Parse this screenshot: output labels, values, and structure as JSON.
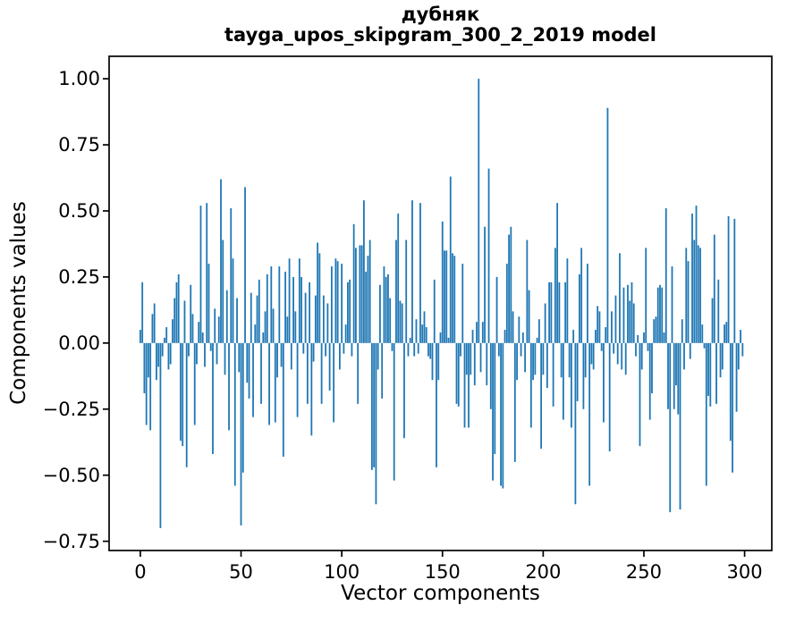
{
  "chart": {
    "title_line1": "дубняк",
    "title_line2": "tayga_upos_skipgram_300_2_2019 model",
    "xlabel": "Vector components",
    "ylabel": "Components values"
  },
  "chart_data": {
    "type": "bar",
    "title": "дубняк — tayga_upos_skipgram_300_2_2019 model",
    "xlabel": "Vector components",
    "ylabel": "Components values",
    "bar_color": "#1f77b4",
    "frame_color": "#000000",
    "grid": false,
    "legend": null,
    "n_points": 300,
    "x_start": 0,
    "xlim": [
      -15.5,
      313.5
    ],
    "ylim": [
      -0.785,
      1.085
    ],
    "x_ticks": [
      {
        "value": 0,
        "label": "0"
      },
      {
        "value": 50,
        "label": "50"
      },
      {
        "value": 100,
        "label": "100"
      },
      {
        "value": 150,
        "label": "150"
      },
      {
        "value": 200,
        "label": "200"
      },
      {
        "value": 250,
        "label": "250"
      },
      {
        "value": 300,
        "label": "300"
      }
    ],
    "y_ticks": [
      {
        "value": 1.0,
        "label": "1.00"
      },
      {
        "value": 0.75,
        "label": "0.75"
      },
      {
        "value": 0.5,
        "label": "0.50"
      },
      {
        "value": 0.25,
        "label": "0.25"
      },
      {
        "value": 0.0,
        "label": "0.00"
      },
      {
        "value": -0.25,
        "label": "−0.25"
      },
      {
        "value": -0.5,
        "label": "−0.50"
      },
      {
        "value": -0.75,
        "label": "−0.75"
      }
    ],
    "values": [
      0.05,
      0.23,
      -0.19,
      -0.31,
      -0.13,
      -0.33,
      0.11,
      0.15,
      -0.14,
      -0.09,
      -0.7,
      -0.05,
      0.02,
      0.06,
      -0.1,
      -0.08,
      0.09,
      0.17,
      0.23,
      0.26,
      -0.37,
      -0.39,
      0.16,
      -0.47,
      -0.05,
      0.22,
      0.11,
      -0.31,
      -0.08,
      0.08,
      0.52,
      0.04,
      -0.09,
      0.53,
      0.3,
      -0.03,
      -0.42,
      0.13,
      -0.08,
      0.1,
      0.62,
      0.39,
      -0.12,
      0.2,
      -0.33,
      0.51,
      0.32,
      -0.54,
      0.17,
      -0.11,
      -0.69,
      -0.49,
      0.59,
      -0.15,
      -0.21,
      0.19,
      -0.28,
      0.07,
      0.18,
      0.24,
      -0.23,
      0.04,
      0.12,
      0.26,
      -0.31,
      0.29,
      0.13,
      -0.3,
      -0.13,
      0.29,
      -0.09,
      -0.43,
      0.27,
      0.1,
      0.32,
      -0.1,
      0.25,
      0.12,
      -0.28,
      0.32,
      0.25,
      -0.04,
      0.19,
      -0.23,
      0.23,
      -0.35,
      -0.07,
      0.18,
      0.38,
      0.34,
      -0.23,
      0.18,
      -0.05,
      0.15,
      -0.18,
      0.29,
      -0.3,
      0.32,
      0.31,
      -0.1,
      0.3,
      -0.04,
      0.07,
      0.23,
      0.24,
      -0.05,
      0.45,
      0.36,
      -0.23,
      0.37,
      0.37,
      0.54,
      0.27,
      0.33,
      0.39,
      -0.48,
      -0.47,
      -0.61,
      -0.1,
      0.22,
      -0.21,
      0.29,
      0.25,
      0.26,
      0.17,
      -0.03,
      -0.52,
      0.39,
      0.49,
      0.16,
      0.15,
      -0.36,
      0.39,
      -0.05,
      0.02,
      0.54,
      -0.05,
      0.09,
      -0.04,
      0.53,
      0.07,
      0.12,
      0.06,
      -0.05,
      -0.06,
      -0.14,
      0.24,
      -0.47,
      -0.14,
      0.04,
      0.46,
      0.35,
      0.35,
      0.02,
      0.63,
      0.34,
      0.33,
      -0.23,
      -0.24,
      -0.05,
      0.3,
      -0.32,
      -0.12,
      -0.32,
      -0.12,
      0.05,
      -0.16,
      0.08,
      1.0,
      -0.11,
      0.08,
      0.44,
      -0.16,
      0.66,
      -0.25,
      -0.52,
      -0.42,
      0.25,
      -0.05,
      -0.54,
      -0.55,
      0.05,
      0.3,
      0.41,
      0.44,
      0.12,
      -0.45,
      -0.14,
      0.1,
      -0.05,
      0.04,
      -0.11,
      0.39,
      0.2,
      -0.32,
      -0.14,
      -0.12,
      0.02,
      0.09,
      -0.4,
      -0.12,
      0.15,
      -0.17,
      0.23,
      0.23,
      -0.24,
      0.36,
      0.53,
      0.23,
      -0.13,
      -0.29,
      0.23,
      0.32,
      -0.13,
      -0.32,
      0.05,
      -0.61,
      -0.22,
      0.26,
      0.36,
      -0.25,
      -0.13,
      0.3,
      -0.54,
      -0.08,
      -0.1,
      0.05,
      0.14,
      0.12,
      -0.03,
      -0.3,
      0.06,
      0.89,
      -0.41,
      0.12,
      -0.04,
      0.18,
      -0.08,
      0.34,
      -0.1,
      0.21,
      -0.12,
      0.22,
      0.16,
      0.23,
      0.15,
      -0.05,
      0.03,
      -0.39,
      -0.1,
      0.04,
      0.36,
      -0.03,
      -0.29,
      -0.19,
      0.09,
      0.1,
      0.21,
      0.22,
      0.21,
      0.04,
      0.51,
      -0.25,
      -0.64,
      0.29,
      -0.25,
      -0.16,
      -0.27,
      -0.63,
      0.09,
      -0.1,
      0.36,
      0.31,
      -0.06,
      0.49,
      0.39,
      0.52,
      0.37,
      0.36,
      0.07,
      -0.02,
      -0.54,
      -0.2,
      -0.24,
      0.17,
      0.41,
      -0.23,
      0.24,
      -0.13,
      -0.1,
      0.07,
      0.08,
      0.48,
      -0.37,
      -0.49,
      0.47,
      -0.26,
      -0.1,
      0.05,
      -0.05
    ]
  }
}
